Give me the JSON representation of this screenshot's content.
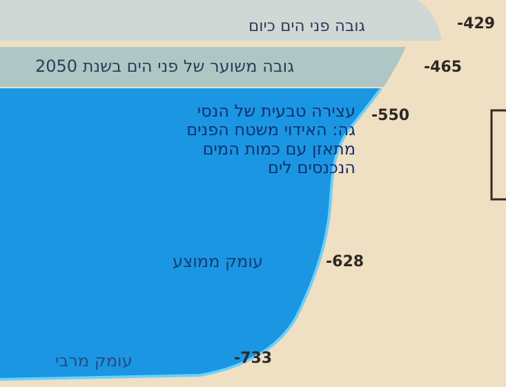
{
  "levels": {
    "current_sea_level": {
      "label": "גובה פני הים כיום",
      "value": "-429"
    },
    "projected_2050": {
      "label": "גובה משוער של פני הים בשנת 2050",
      "value": "-465"
    },
    "natural_stop": {
      "value": "-550",
      "lines": [
        "עצירה טבעית של הנסי",
        "גה: האידוי משטח הפנים",
        "מתאזן עם כמות המים",
        "הנכנסים לים"
      ]
    },
    "average_depth": {
      "label": "עומק ממוצע",
      "value": "-628"
    },
    "max_depth": {
      "label": "עומק מרבי",
      "value": "-733"
    }
  },
  "colors": {
    "background": "#efdfc3",
    "current_band": "#cfd8d5",
    "projected_band": "#afc7c4",
    "water": "#1b96e3",
    "water_edge": "#67d2ff",
    "text": "#2d3b57",
    "numbers": "#2e2a22"
  }
}
